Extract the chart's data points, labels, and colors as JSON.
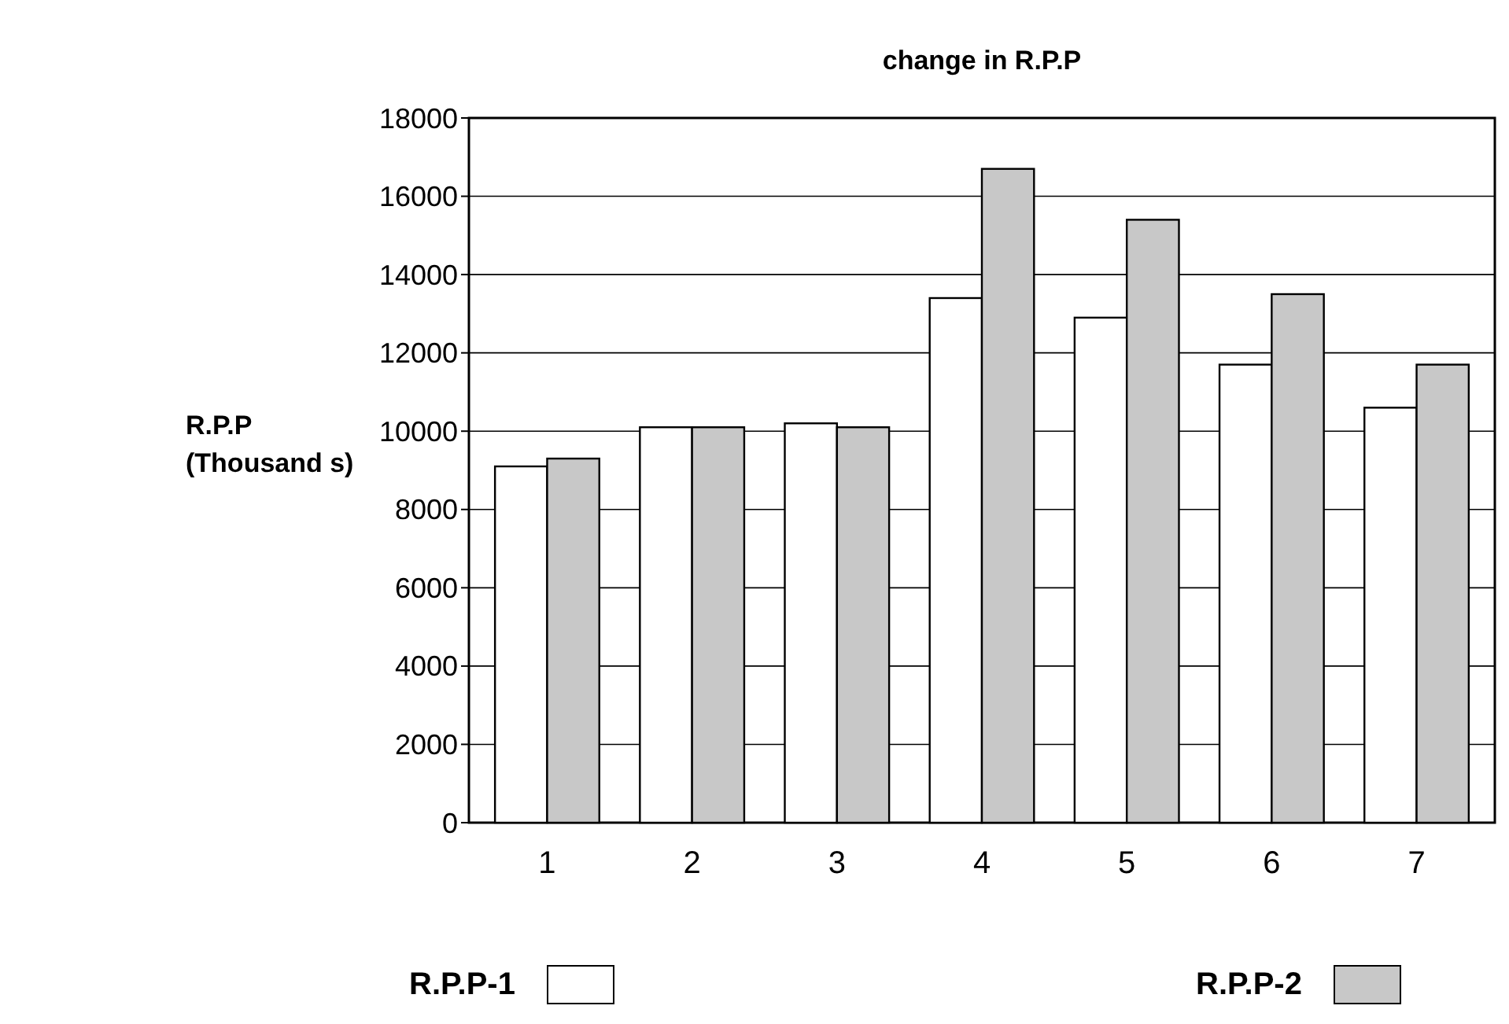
{
  "chart_data": {
    "type": "bar",
    "title": "change in R.P.P",
    "ylabel": "R.P.P\n(Thousand s)",
    "categories": [
      "1",
      "2",
      "3",
      "4",
      "5",
      "6",
      "7"
    ],
    "series": [
      {
        "name": "R.P.P-1",
        "color": "#ffffff",
        "values": [
          9100,
          10100,
          10200,
          13400,
          12900,
          11700,
          10600
        ]
      },
      {
        "name": "R.P.P-2",
        "color": "#c8c8c8",
        "values": [
          9300,
          10100,
          10100,
          16700,
          15400,
          13500,
          11700
        ]
      }
    ],
    "ylim": [
      0,
      18000
    ],
    "yticks": [
      0,
      2000,
      4000,
      6000,
      8000,
      10000,
      12000,
      14000,
      16000,
      18000
    ],
    "grid": "y",
    "legend": "bottom"
  }
}
